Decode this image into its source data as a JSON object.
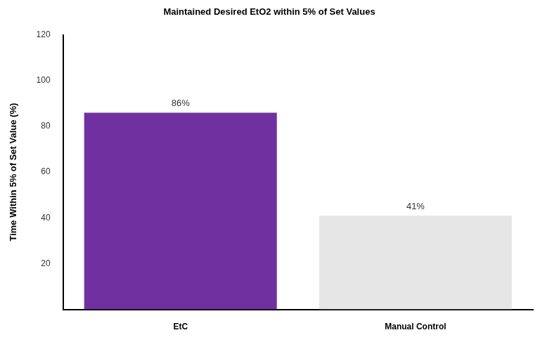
{
  "chart_data": {
    "type": "bar",
    "title": "Maintained Desired EtO2 within 5% of Set Values",
    "y_label": "Time Within 5% of Set Value (%)",
    "categories": [
      "EtC",
      "Manual Control"
    ],
    "values": [
      86,
      41
    ],
    "value_labels": [
      "86%",
      "41%"
    ],
    "colors": [
      "#7030a0",
      "#e7e6e6"
    ],
    "ylim": [
      0,
      120
    ],
    "yticks": [
      20,
      40,
      60,
      80,
      100,
      120
    ],
    "grid": false,
    "data_labels": true
  }
}
